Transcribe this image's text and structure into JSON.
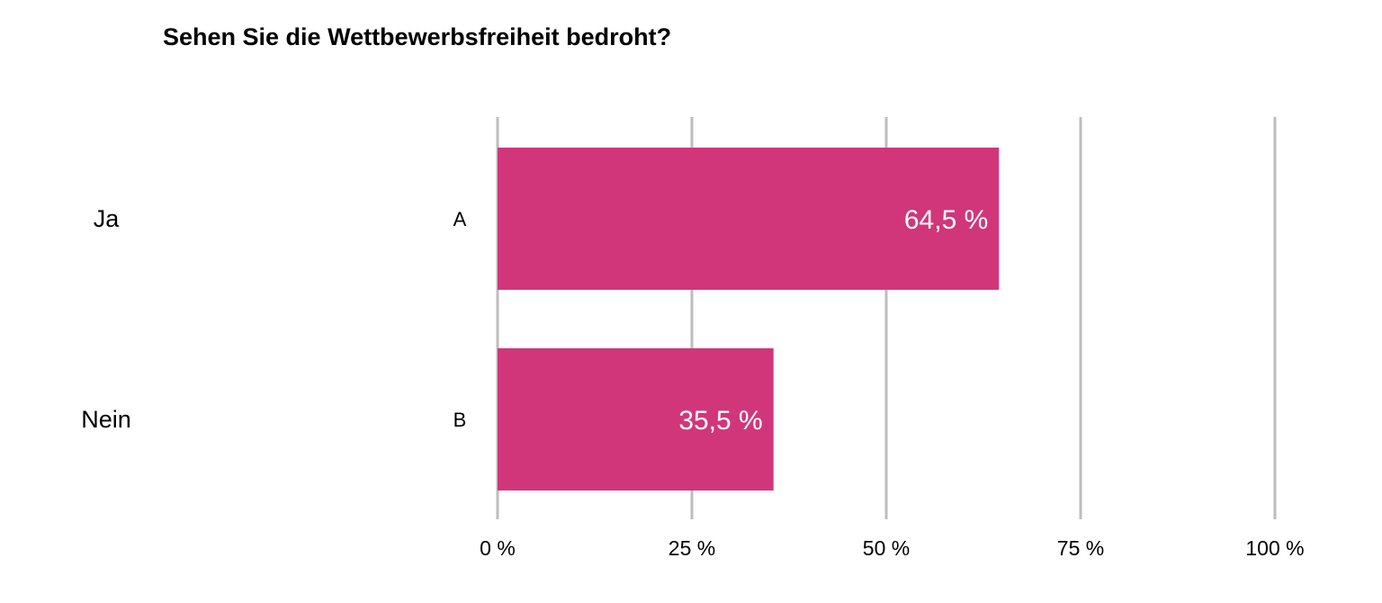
{
  "chart_data": {
    "type": "bar",
    "orientation": "horizontal",
    "title": "Sehen Sie die Wettbewerbsfreiheit bedroht?",
    "categories": [
      "Ja",
      "Nein"
    ],
    "codes": [
      "A",
      "B"
    ],
    "values": [
      64.5,
      35.5
    ],
    "value_labels": [
      "64,5 %",
      "35,5 %"
    ],
    "xlim": [
      0,
      100
    ],
    "ticks": [
      0,
      25,
      50,
      75,
      100
    ],
    "tick_labels": [
      "0 %",
      "25 %",
      "50 %",
      "75 %",
      "100 %"
    ],
    "xlabel": "",
    "ylabel": "",
    "grid": true,
    "legend": "none",
    "colors": {
      "bar": "#d1367a",
      "grid": "#bdbdbd",
      "value_text": "#ffffff"
    }
  }
}
